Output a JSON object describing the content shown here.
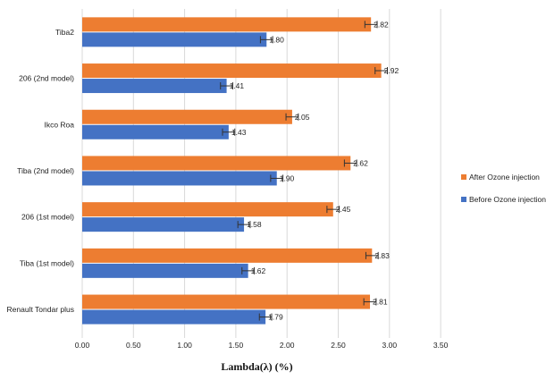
{
  "chart_data": {
    "type": "bar",
    "orientation": "horizontal",
    "categories": [
      "Tiba2",
      "206 (2nd model)",
      "Ikco Roa",
      "Tiba (2nd model)",
      "206 (1st model)",
      "Tiba (1st model)",
      "Renault Tondar plus"
    ],
    "series": [
      {
        "name": "After Ozone injection",
        "color": "#ED7D31",
        "values": [
          2.82,
          2.92,
          2.05,
          2.62,
          2.45,
          2.83,
          2.81
        ],
        "labels": [
          "2.82",
          "2.92",
          "2.05",
          "2.62",
          "2.45",
          "2.83",
          "2.81"
        ]
      },
      {
        "name": "Before Ozone injection",
        "color": "#4472C4",
        "values": [
          1.8,
          1.41,
          1.43,
          1.9,
          1.58,
          1.62,
          1.79
        ],
        "labels": [
          "1.80",
          "1.41",
          "1.43",
          "1.90",
          "1.58",
          "1.62",
          "1.79"
        ]
      }
    ],
    "error_bars": true,
    "xlim": [
      0,
      3.5
    ],
    "xticks": [
      "0.00",
      "0.50",
      "1.00",
      "1.50",
      "2.00",
      "2.50",
      "3.00",
      "3.50"
    ],
    "xlabel": "Lambda(λ) (%)",
    "grid": "vertical",
    "legend_position": "right"
  }
}
